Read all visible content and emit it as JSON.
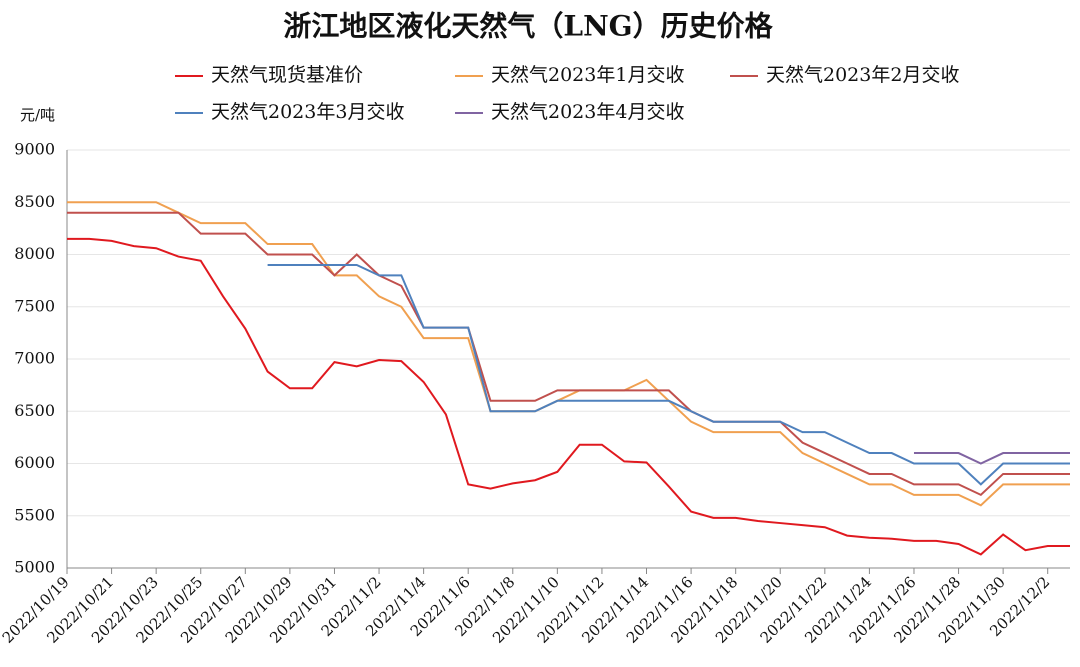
{
  "chart_data": {
    "type": "line",
    "title": "浙江地区液化天然气（LNG）历史价格",
    "y_label": "元/吨",
    "x": [
      "2022/10/19",
      "2022/10/20",
      "2022/10/21",
      "2022/10/22",
      "2022/10/23",
      "2022/10/24",
      "2022/10/25",
      "2022/10/26",
      "2022/10/27",
      "2022/10/28",
      "2022/10/29",
      "2022/10/30",
      "2022/10/31",
      "2022/11/1",
      "2022/11/2",
      "2022/11/3",
      "2022/11/4",
      "2022/11/5",
      "2022/11/6",
      "2022/11/7",
      "2022/11/8",
      "2022/11/9",
      "2022/11/10",
      "2022/11/11",
      "2022/11/12",
      "2022/11/13",
      "2022/11/14",
      "2022/11/15",
      "2022/11/16",
      "2022/11/17",
      "2022/11/18",
      "2022/11/19",
      "2022/11/20",
      "2022/11/21",
      "2022/11/22",
      "2022/11/23",
      "2022/11/24",
      "2022/11/25",
      "2022/11/26",
      "2022/11/27",
      "2022/11/28",
      "2022/11/29",
      "2022/11/30",
      "2022/12/1",
      "2022/12/2",
      "2022/12/3"
    ],
    "series": [
      {
        "name": "天然气现货基准价",
        "color": "#e0191f",
        "values": [
          8150,
          8150,
          8130,
          8080,
          8060,
          7980,
          7940,
          7600,
          7290,
          6880,
          6720,
          6720,
          6970,
          6930,
          6990,
          6980,
          6780,
          6470,
          5800,
          5760,
          5810,
          5840,
          5920,
          6180,
          6180,
          6020,
          6010,
          5780,
          5540,
          5480,
          5480,
          5450,
          5430,
          5410,
          5390,
          5310,
          5290,
          5280,
          5260,
          5260,
          5230,
          5130,
          5320,
          5170,
          5210,
          5210
        ]
      },
      {
        "name": "天然气2023年1月交收",
        "color": "#f0a050",
        "values": [
          8500,
          8500,
          8500,
          8500,
          8500,
          8400,
          8300,
          8300,
          8300,
          8100,
          8100,
          8100,
          7800,
          7800,
          7600,
          7500,
          7200,
          7200,
          7200,
          6500,
          6500,
          6500,
          6600,
          6700,
          6700,
          6700,
          6800,
          6600,
          6400,
          6300,
          6300,
          6300,
          6300,
          6100,
          6000,
          5900,
          5800,
          5800,
          5700,
          5700,
          5700,
          5600,
          5800,
          5800,
          5800,
          5800
        ]
      },
      {
        "name": "天然气2023年2月交收",
        "color": "#c0504d",
        "values": [
          8400,
          8400,
          8400,
          8400,
          8400,
          8400,
          8200,
          8200,
          8200,
          8000,
          8000,
          8000,
          7800,
          8000,
          7800,
          7700,
          7300,
          7300,
          7300,
          6600,
          6600,
          6600,
          6700,
          6700,
          6700,
          6700,
          6700,
          6700,
          6500,
          6400,
          6400,
          6400,
          6400,
          6200,
          6100,
          6000,
          5900,
          5900,
          5800,
          5800,
          5800,
          5700,
          5900,
          5900,
          5900,
          5900
        ]
      },
      {
        "name": "天然气2023年3月交收",
        "color": "#4f81bd",
        "values": [
          null,
          null,
          null,
          null,
          null,
          null,
          null,
          null,
          null,
          7900,
          7900,
          7900,
          7900,
          7900,
          7800,
          7800,
          7300,
          7300,
          7300,
          6500,
          6500,
          6500,
          6600,
          6600,
          6600,
          6600,
          6600,
          6600,
          6500,
          6400,
          6400,
          6400,
          6400,
          6300,
          6300,
          6200,
          6100,
          6100,
          6000,
          6000,
          6000,
          5800,
          6000,
          6000,
          6000,
          6000
        ]
      },
      {
        "name": "天然气2023年4月交收",
        "color": "#8064a2",
        "values": [
          null,
          null,
          null,
          null,
          null,
          null,
          null,
          null,
          null,
          null,
          null,
          null,
          null,
          null,
          null,
          null,
          null,
          null,
          null,
          null,
          null,
          null,
          null,
          null,
          null,
          null,
          null,
          null,
          null,
          null,
          null,
          null,
          null,
          null,
          null,
          null,
          null,
          null,
          6100,
          6100,
          6100,
          6000,
          6100,
          6100,
          6100,
          6100
        ]
      }
    ],
    "xlim": [
      "2022/10/19",
      "2022/12/3"
    ],
    "xticks": [
      "2022/10/19",
      "2022/10/21",
      "2022/10/23",
      "2022/10/25",
      "2022/10/27",
      "2022/10/29",
      "2022/10/31",
      "2022/11/2",
      "2022/11/4",
      "2022/11/6",
      "2022/11/8",
      "2022/11/10",
      "2022/11/12",
      "2022/11/14",
      "2022/11/16",
      "2022/11/18",
      "2022/11/20",
      "2022/11/22",
      "2022/11/24",
      "2022/11/26",
      "2022/11/28",
      "2022/11/30",
      "2022/12/2"
    ],
    "ylim": [
      5000,
      9000
    ],
    "yticks": [
      5000,
      5500,
      6000,
      6500,
      7000,
      7500,
      8000,
      8500,
      9000
    ],
    "grid": true
  }
}
